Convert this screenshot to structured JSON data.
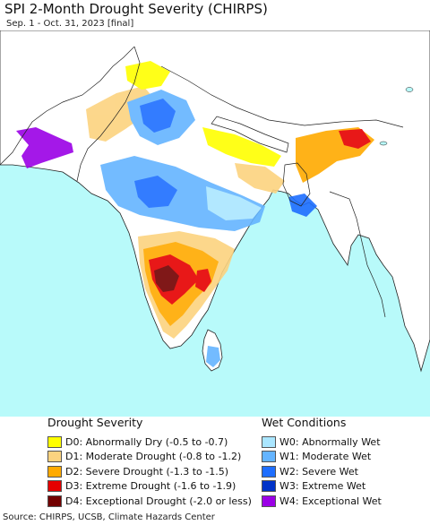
{
  "header": {
    "title": "SPI 2-Month Drought Severity (CHIRPS)",
    "subtitle": "Sep. 1 - Oct. 31, 2023 [final]"
  },
  "map": {
    "ocean_color": "#b8fafa",
    "land_color": "#ffffff",
    "border_color": "#222222"
  },
  "legend": {
    "drought": {
      "heading": "Drought Severity",
      "items": [
        {
          "label": "D0: Abnormally Dry (-0.5 to -0.7)",
          "color": "#ffff00"
        },
        {
          "label": "D1: Moderate Drought (-0.8 to -1.2)",
          "color": "#fcd37f"
        },
        {
          "label": "D2: Severe Drought (-1.3 to -1.5)",
          "color": "#ffaa00"
        },
        {
          "label": "D3: Extreme Drought (-1.6 to -1.9)",
          "color": "#e60000"
        },
        {
          "label": "D4: Exceptional Drought (-2.0 or less)",
          "color": "#730000"
        }
      ]
    },
    "wet": {
      "heading": "Wet Conditions",
      "items": [
        {
          "label": "W0: Abnormally Wet",
          "color": "#aae6ff"
        },
        {
          "label": "W1: Moderate Wet",
          "color": "#64b4ff"
        },
        {
          "label": "W2: Severe Wet",
          "color": "#1e6eff"
        },
        {
          "label": "W3: Extreme Wet",
          "color": "#0032c8"
        },
        {
          "label": "W4: Exceptional Wet",
          "color": "#9b00e6"
        }
      ]
    }
  },
  "footer": {
    "source": "Source: CHIRPS, UCSB, Climate Hazards Center"
  }
}
